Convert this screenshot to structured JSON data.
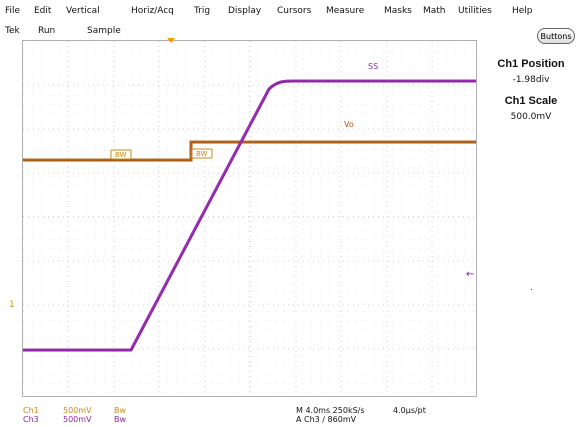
{
  "menu": {
    "file": "File",
    "edit": "Edit",
    "vertical": "Vertical",
    "horiz_acq": "Horiz/Acq",
    "trig": "Trig",
    "display": "Display",
    "cursors": "Cursors",
    "measure": "Measure",
    "masks": "Masks",
    "math": "Math",
    "utilities": "Utilities",
    "help": "Help"
  },
  "status": {
    "tek": "Tek",
    "run": "Run",
    "sample": "Sample",
    "buttons": "Buttons"
  },
  "side_panel": {
    "ch1_position_title": "Ch1 Position",
    "ch1_position_value": "-1.98div",
    "ch1_scale_title": "Ch1 Scale",
    "ch1_scale_value": "500.0mV"
  },
  "plot": {
    "ss_label": "SS",
    "vo_label": "Vo",
    "ch1_marker": "1",
    "bw_tag": "BW"
  },
  "bottom": {
    "ch1": "Ch1",
    "ch1_scale": "500mV",
    "ch1_bw": "Bw",
    "ch3": "Ch3",
    "ch3_scale": "500mV",
    "ch3_bw": "Bw",
    "timebase": "M 4.0ms 250kS/s",
    "point_rate": "4.0µs/pt",
    "trigger": "A  Ch3  ∕  860mV"
  },
  "colors": {
    "ch1": "#c48c1a",
    "ch3": "#8b2aa0",
    "orange_trace": "#a85c16",
    "purple_trace": "#8f23a7"
  }
}
